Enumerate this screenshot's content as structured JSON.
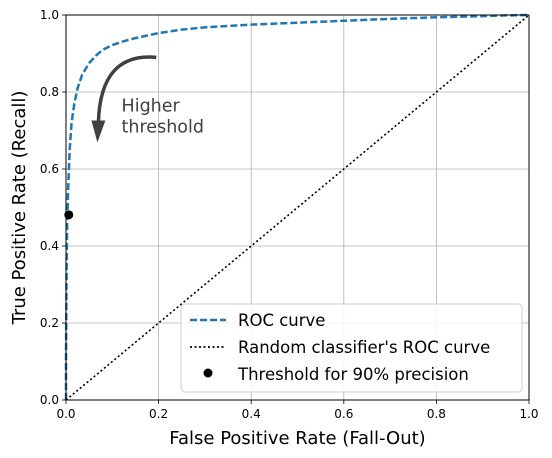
{
  "chart_data": {
    "type": "line",
    "title": "",
    "xlabel": "False Positive Rate (Fall-Out)",
    "ylabel": "True Positive Rate (Recall)",
    "xlim": [
      0,
      1
    ],
    "ylim": [
      0,
      1
    ],
    "xticks": [
      "0.0",
      "0.2",
      "0.4",
      "0.6",
      "0.8",
      "1.0"
    ],
    "yticks": [
      "0.0",
      "0.2",
      "0.4",
      "0.6",
      "0.8",
      "1.0"
    ],
    "grid": true,
    "legend_position": "lower-right",
    "series": [
      {
        "name": "ROC curve",
        "style": "dashed",
        "color": "#1f77b4",
        "x": [
          0.0,
          0.0,
          0.001,
          0.002,
          0.003,
          0.005,
          0.008,
          0.012,
          0.018,
          0.025,
          0.035,
          0.05,
          0.065,
          0.08,
          0.1,
          0.125,
          0.15,
          0.2,
          0.25,
          0.3,
          0.4,
          0.5,
          0.6,
          0.7,
          0.8,
          0.9,
          0.95,
          1.0
        ],
        "y": [
          0.0,
          0.1,
          0.3,
          0.42,
          0.48,
          0.56,
          0.65,
          0.72,
          0.77,
          0.81,
          0.845,
          0.875,
          0.895,
          0.91,
          0.922,
          0.932,
          0.94,
          0.953,
          0.962,
          0.968,
          0.975,
          0.98,
          0.985,
          0.99,
          0.994,
          0.997,
          0.999,
          1.0
        ]
      },
      {
        "name": "Random classifier's ROC curve",
        "style": "dotted",
        "color": "#000000",
        "x": [
          0,
          1
        ],
        "y": [
          0,
          1
        ]
      },
      {
        "name": "Threshold for 90% precision",
        "style": "marker",
        "color": "#000000",
        "x": [
          0.006
        ],
        "y": [
          0.481
        ]
      }
    ],
    "annotations": [
      {
        "text_lines": [
          "Higher",
          "threshold"
        ],
        "text_x": 0.12,
        "text_y": 0.75,
        "arrow_from": [
          0.195,
          0.89
        ],
        "arrow_to": [
          0.07,
          0.7
        ]
      }
    ]
  }
}
